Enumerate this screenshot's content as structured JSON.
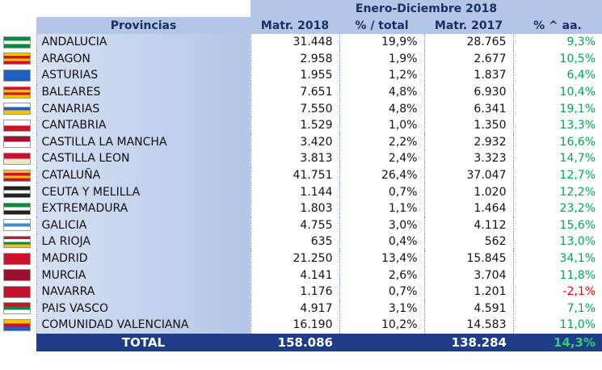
{
  "table": {
    "period": "Enero-Diciembre 2018",
    "columns": [
      "Provincias",
      "Matr. 2018",
      "% / total",
      "Matr. 2017",
      "% ^ aa."
    ],
    "rows": [
      [
        "ANDALUCIA",
        "31.448",
        "19,9%",
        "28.765",
        "9,3%"
      ],
      [
        "ARAGON",
        "2.958",
        "1,9%",
        "2.677",
        "10,5%"
      ],
      [
        "ASTURIAS",
        "1.955",
        "1,2%",
        "1.837",
        "6,4%"
      ],
      [
        "BALEARES",
        "7.651",
        "4,8%",
        "6.930",
        "10,4%"
      ],
      [
        "CANARIAS",
        "7.550",
        "4,8%",
        "6.341",
        "19,1%"
      ],
      [
        "CANTABRIA",
        "1.529",
        "1,0%",
        "1.350",
        "13,3%"
      ],
      [
        "CASTILLA LA MANCHA",
        "3.420",
        "2,2%",
        "2.932",
        "16,6%"
      ],
      [
        "CASTILLA LEON",
        "3.813",
        "2,4%",
        "3.323",
        "14,7%"
      ],
      [
        "CATALUÑA",
        "41.751",
        "26,4%",
        "37.047",
        "12,7%"
      ],
      [
        "CEUTA Y MELILLA",
        "1.144",
        "0,7%",
        "1.020",
        "12,2%"
      ],
      [
        "EXTREMADURA",
        "1.803",
        "1,1%",
        "1.464",
        "23,2%"
      ],
      [
        "GALICIA",
        "4.755",
        "3,0%",
        "4.112",
        "15,6%"
      ],
      [
        "LA RIOJA",
        "635",
        "0,4%",
        "562",
        "13,0%"
      ],
      [
        "MADRID",
        "21.250",
        "13,4%",
        "15.845",
        "34,1%"
      ],
      [
        "MURCIA",
        "4.141",
        "2,6%",
        "3.704",
        "11,8%"
      ],
      [
        "NAVARRA",
        "1.176",
        "0,7%",
        "1.201",
        "-2,1%"
      ],
      [
        "PAIS VASCO",
        "4.917",
        "3,1%",
        "4.591",
        "7,1%"
      ],
      [
        "COMUNIDAD VALENCIANA",
        "16.190",
        "10,2%",
        "14.583",
        "11,0%"
      ]
    ],
    "total": [
      "TOTAL",
      "158.086",
      "138.284",
      "14,3%"
    ]
  }
}
